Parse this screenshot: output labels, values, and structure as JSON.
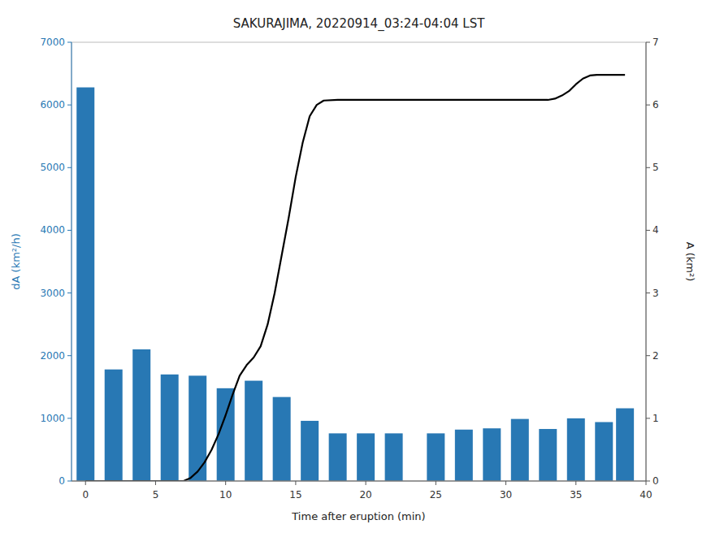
{
  "chart_data": {
    "type": "bar",
    "title": "SAKURAJIMA, 20220914_03:24-04:04 LST",
    "x_label": "Time after eruption (min)",
    "y_label": "dA (km²/h)",
    "y2_label": "A (km²)",
    "xlim": [
      -1.0,
      40
    ],
    "xticks": [
      0,
      5,
      10,
      15,
      20,
      25,
      30,
      35,
      40
    ],
    "ylim": [
      0,
      7000
    ],
    "yticks": [
      0,
      1000,
      2000,
      3000,
      4000,
      5000,
      6000,
      7000
    ],
    "y2lim": [
      0,
      7
    ],
    "y2ticks": [
      0,
      1,
      2,
      3,
      4,
      5,
      6,
      7
    ],
    "grid": false,
    "series": [
      {
        "type": "bar",
        "color": "#2878B4",
        "x": [
          0,
          2,
          4,
          6,
          8,
          10,
          12,
          14,
          16,
          18,
          20,
          22,
          25,
          27,
          29,
          31,
          33,
          35,
          37,
          38.5
        ],
        "values": [
          6280,
          1780,
          2100,
          1700,
          1680,
          1480,
          1600,
          1340,
          960,
          760,
          760,
          760,
          760,
          820,
          840,
          990,
          830,
          1000,
          940,
          1160
        ]
      },
      {
        "type": "line",
        "color": "#000000",
        "axis": "y2",
        "x": [
          0,
          1,
          2,
          3,
          4,
          5,
          6,
          7,
          7.5,
          8,
          8.5,
          9,
          9.5,
          10,
          10.5,
          11,
          11.5,
          12,
          12.5,
          13,
          13.5,
          14,
          14.5,
          15,
          15.5,
          16,
          16.5,
          17,
          18,
          19,
          20,
          21,
          22,
          23,
          24,
          25,
          26,
          27,
          28,
          29,
          30,
          31,
          32,
          33,
          33.5,
          34,
          34.5,
          35,
          35.5,
          36,
          36.5,
          37,
          37.5,
          38,
          38.5
        ],
        "values": [
          0.0,
          0.0,
          0.0,
          0.0,
          0.0,
          0.0,
          0.0,
          0.0,
          0.05,
          0.15,
          0.3,
          0.5,
          0.75,
          1.05,
          1.38,
          1.68,
          1.85,
          1.97,
          2.15,
          2.5,
          3.0,
          3.6,
          4.2,
          4.85,
          5.4,
          5.82,
          6.0,
          6.07,
          6.08,
          6.08,
          6.08,
          6.08,
          6.08,
          6.08,
          6.08,
          6.08,
          6.08,
          6.08,
          6.08,
          6.08,
          6.08,
          6.08,
          6.08,
          6.08,
          6.1,
          6.15,
          6.22,
          6.33,
          6.42,
          6.47,
          6.48,
          6.48,
          6.48,
          6.48,
          6.48
        ]
      }
    ]
  }
}
